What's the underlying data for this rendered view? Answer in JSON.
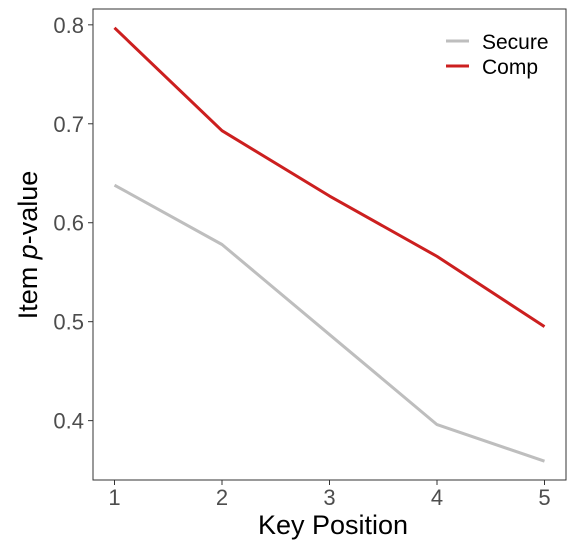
{
  "chart_data": {
    "type": "line",
    "x": [
      1,
      2,
      3,
      4,
      5
    ],
    "series": [
      {
        "name": "Secure",
        "color": "#bebebe",
        "values": [
          0.638,
          0.578,
          0.487,
          0.396,
          0.359
        ]
      },
      {
        "name": "Comp",
        "color": "#cc1f1f",
        "values": [
          0.797,
          0.693,
          0.627,
          0.566,
          0.495
        ]
      }
    ],
    "xlabel": "Key Position",
    "ylabel_prefix": "Item ",
    "ylabel_italic": "p",
    "ylabel_suffix": "-value",
    "xlim": [
      0.8,
      5.2
    ],
    "ylim": [
      0.34,
      0.816
    ],
    "xticks": [
      "1",
      "2",
      "3",
      "4",
      "5"
    ],
    "yticks": [
      "0.4",
      "0.5",
      "0.6",
      "0.7",
      "0.8"
    ],
    "grid": false,
    "legend_position": "top-right"
  }
}
